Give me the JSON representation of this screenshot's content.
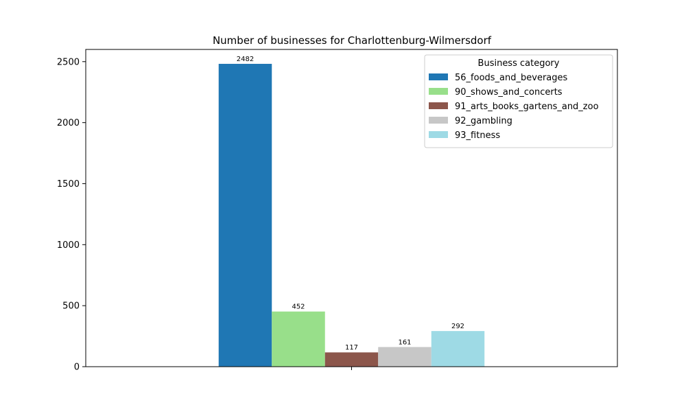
{
  "chart_data": {
    "type": "bar",
    "title": "Number of businesses for Charlottenburg-Wilmersdorf",
    "xlabel": "",
    "ylabel": "",
    "categories": [
      ""
    ],
    "ylim": [
      0,
      2600
    ],
    "yticks": [
      0,
      500,
      1000,
      1500,
      2000,
      2500
    ],
    "grid": false,
    "legend": {
      "title": "Business category",
      "placement": "top-right"
    },
    "series": [
      {
        "name": "56_foods_and_beverages",
        "values": [
          2482
        ],
        "color": "#1f77b4",
        "label": "2482"
      },
      {
        "name": "90_shows_and_concerts",
        "values": [
          452
        ],
        "color": "#98df8a",
        "label": "452"
      },
      {
        "name": "91_arts_books_gartens_and_zoo",
        "values": [
          117
        ],
        "color": "#8c564b",
        "label": "117"
      },
      {
        "name": "92_gambling",
        "values": [
          161
        ],
        "color": "#c7c7c7",
        "label": "161"
      },
      {
        "name": "93_fitness",
        "values": [
          292
        ],
        "color": "#9edae5",
        "label": "292"
      }
    ]
  }
}
